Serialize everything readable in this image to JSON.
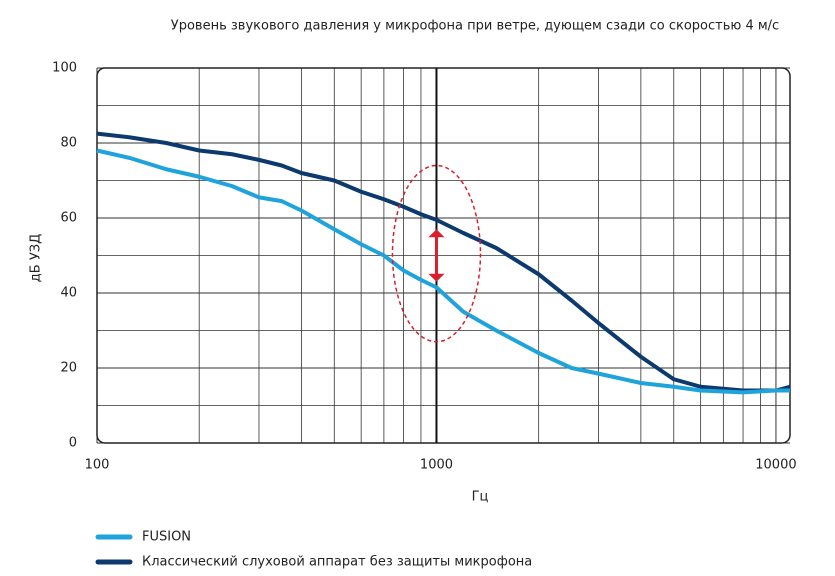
{
  "chart_data": {
    "type": "line",
    "title": "Уровень звукового давления у микрофона при ветре, дующем сзади со скоростью 4 м/с",
    "x_label": "Гц",
    "y_label": "дБ УЗД",
    "x": [
      100,
      125,
      160,
      200,
      250,
      300,
      350,
      400,
      500,
      600,
      700,
      800,
      900,
      1000,
      1200,
      1500,
      2000,
      2500,
      3000,
      4000,
      5000,
      6000,
      8000,
      10000,
      11000
    ],
    "series": [
      {
        "name": "FUSION",
        "color": "#1fa3dc",
        "values": [
          78,
          76,
          73,
          71,
          68.5,
          65.5,
          64.5,
          62,
          57,
          53,
          50,
          46,
          43.5,
          41.5,
          35,
          30,
          24,
          20,
          18.5,
          16,
          15,
          14,
          13.5,
          14,
          14
        ]
      },
      {
        "name": "Классический слуховой аппарат без защиты микрофона",
        "color": "#0d3a6e",
        "values": [
          82.5,
          81.5,
          80,
          78,
          77,
          75.5,
          74,
          72,
          70,
          67,
          65,
          63,
          61,
          59.5,
          56,
          52,
          45,
          38,
          32,
          23,
          17,
          15,
          14,
          14,
          15
        ]
      }
    ],
    "x_scale": "log",
    "xlim": [
      100,
      11000
    ],
    "xticks": [
      100,
      1000,
      10000
    ],
    "ylim": [
      0,
      100
    ],
    "yticks": [
      0,
      20,
      40,
      60,
      80,
      100
    ],
    "grid": true,
    "highlight": {
      "x": 1000,
      "arrow_from": 43,
      "arrow_to": 57,
      "ellipse_from": 27,
      "ellipse_to": 74,
      "color": "#d9202a"
    }
  }
}
